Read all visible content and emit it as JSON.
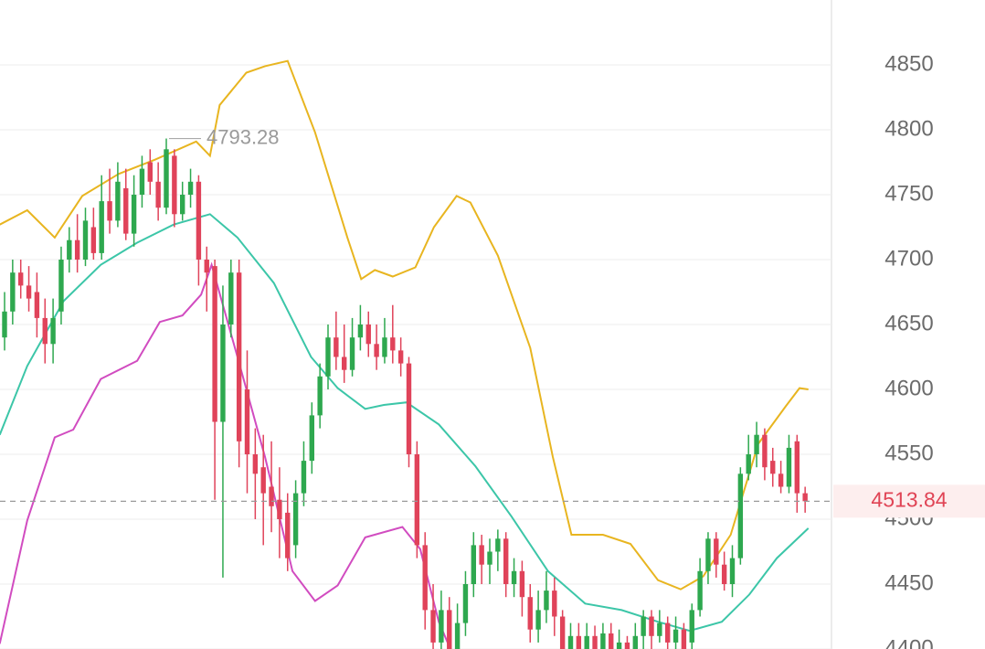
{
  "chart_data": {
    "type": "candlestick",
    "up_color": "#2ea84f",
    "down_color": "#e0435a",
    "ylim": [
      4400,
      4900
    ],
    "yticks": [
      4400,
      4450,
      4500,
      4550,
      4600,
      4650,
      4700,
      4750,
      4800,
      4850
    ],
    "grid": true,
    "candles": {
      "open": [
        4640,
        4660,
        4690,
        4680,
        4675,
        4655,
        4635,
        4660,
        4700,
        4715,
        4700,
        4725,
        4705,
        4745,
        4730,
        4755,
        4720,
        4750,
        4775,
        4760,
        4740,
        4780,
        4735,
        4750,
        4760,
        4700,
        4695,
        4575,
        4650,
        4690,
        4600,
        4550,
        4540,
        4525,
        4515,
        4505,
        4480,
        4520,
        4545,
        4580,
        4610,
        4640,
        4625,
        4615,
        4640,
        4650,
        4635,
        4625,
        4640,
        4630,
        4620,
        4550,
        4480,
        4430,
        4405,
        4430,
        4400,
        4420,
        4450,
        4480,
        4465,
        4475,
        4485,
        4450,
        4460,
        4440,
        4415,
        4430,
        4445,
        4425,
        4400,
        4410,
        4395,
        4410,
        4400,
        4412,
        4400,
        4405,
        4395,
        4410,
        4425,
        4410,
        4420,
        4405,
        4415,
        4405,
        4430,
        4460,
        4485,
        4465,
        4450,
        4470,
        4535,
        4550,
        4565,
        4545,
        4535,
        4525,
        4560,
        4520
      ],
      "high": [
        4675,
        4700,
        4700,
        4695,
        4690,
        4670,
        4670,
        4710,
        4725,
        4735,
        4740,
        4740,
        4765,
        4770,
        4775,
        4770,
        4765,
        4780,
        4785,
        4775,
        4793.28,
        4785,
        4760,
        4770,
        4765,
        4710,
        4700,
        4680,
        4700,
        4700,
        4630,
        4570,
        4565,
        4560,
        4540,
        4520,
        4530,
        4560,
        4590,
        4620,
        4650,
        4660,
        4650,
        4655,
        4665,
        4660,
        4650,
        4655,
        4665,
        4640,
        4625,
        4560,
        4490,
        4450,
        4445,
        4440,
        4435,
        4460,
        4490,
        4488,
        4485,
        4492,
        4490,
        4470,
        4468,
        4450,
        4445,
        4460,
        4455,
        4430,
        4420,
        4420,
        4420,
        4418,
        4420,
        4420,
        4415,
        4410,
        4420,
        4430,
        4430,
        4430,
        4425,
        4425,
        4420,
        4435,
        4470,
        4490,
        4490,
        4475,
        4480,
        4540,
        4565,
        4575,
        4570,
        4555,
        4545,
        4565,
        4565,
        4525
      ],
      "low": [
        4630,
        4650,
        4670,
        4660,
        4640,
        4620,
        4620,
        4650,
        4690,
        4690,
        4695,
        4700,
        4700,
        4720,
        4725,
        4715,
        4710,
        4740,
        4750,
        4730,
        4735,
        4725,
        4730,
        4740,
        4680,
        4660,
        4515,
        4455,
        4640,
        4540,
        4520,
        4500,
        4480,
        4490,
        4470,
        4460,
        4470,
        4510,
        4535,
        4570,
        4600,
        4615,
        4605,
        4610,
        4630,
        4625,
        4615,
        4620,
        4620,
        4610,
        4540,
        4470,
        4415,
        4390,
        4395,
        4385,
        4390,
        4410,
        4440,
        4450,
        4450,
        4460,
        4440,
        4440,
        4425,
        4405,
        4405,
        4420,
        4410,
        4385,
        4390,
        4385,
        4385,
        4390,
        4392,
        4390,
        4390,
        4385,
        4390,
        4400,
        4400,
        4405,
        4398,
        4400,
        4390,
        4400,
        4425,
        4450,
        4455,
        4445,
        4440,
        4465,
        4530,
        4540,
        4530,
        4525,
        4520,
        4520,
        4505,
        4505
      ],
      "close": [
        4660,
        4690,
        4680,
        4670,
        4655,
        4635,
        4655,
        4700,
        4715,
        4700,
        4730,
        4705,
        4745,
        4730,
        4760,
        4720,
        4750,
        4770,
        4760,
        4740,
        4785,
        4735,
        4750,
        4760,
        4700,
        4690,
        4575,
        4650,
        4690,
        4560,
        4550,
        4535,
        4520,
        4510,
        4500,
        4470,
        4520,
        4545,
        4580,
        4610,
        4640,
        4625,
        4615,
        4640,
        4650,
        4635,
        4625,
        4640,
        4630,
        4620,
        4550,
        4480,
        4430,
        4405,
        4430,
        4400,
        4420,
        4450,
        4480,
        4465,
        4475,
        4485,
        4450,
        4460,
        4440,
        4415,
        4430,
        4445,
        4425,
        4400,
        4410,
        4395,
        4410,
        4400,
        4412,
        4400,
        4405,
        4395,
        4410,
        4425,
        4410,
        4420,
        4405,
        4415,
        4400,
        4430,
        4460,
        4485,
        4465,
        4450,
        4470,
        4535,
        4550,
        4565,
        4540,
        4535,
        4525,
        4555,
        4520,
        4513.84
      ]
    },
    "series": [
      {
        "color": "#e8b520",
        "x": [
          -0.6,
          2.8,
          6.2,
          9.6,
          14.1,
          18.6,
          23.7,
          25.4,
          26.6,
          29.9,
          32.2,
          35.0,
          38.4,
          42.4,
          44.1,
          45.8,
          48.0,
          50.8,
          53.1,
          55.9,
          57.6,
          61.0,
          65.0,
          67.8,
          70.1,
          74.0,
          77.4,
          80.8,
          83.6,
          86.4,
          89.8,
          93.2,
          96.6,
          98.3,
          99.4
        ],
        "values": [
          4727,
          4738,
          4717,
          4749,
          4766,
          4777,
          4791,
          4780,
          4819,
          4844,
          4849,
          4853,
          4798,
          4717,
          4685,
          4692,
          4687,
          4694,
          4725,
          4749,
          4744,
          4703,
          4632,
          4548,
          4488,
          4488,
          4481,
          4453,
          4446,
          4456,
          4488,
          4558,
          4587,
          4601,
          4600
        ]
      },
      {
        "color": "#3cc6a8",
        "x": [
          -0.6,
          2.8,
          7.3,
          11.9,
          16.4,
          20.9,
          25.4,
          28.8,
          33.3,
          37.9,
          41.2,
          44.6,
          46.9,
          49.7,
          53.7,
          58.2,
          62.7,
          67.2,
          71.8,
          76.3,
          80.8,
          84.7,
          88.7,
          92.1,
          95.5,
          99.4
        ],
        "values": [
          4565,
          4618,
          4668,
          4696,
          4713,
          4727,
          4735,
          4717,
          4682,
          4625,
          4601,
          4585,
          4588,
          4590,
          4573,
          4541,
          4502,
          4460,
          4435,
          4430,
          4421,
          4414,
          4421,
          4442,
          4470,
          4493
        ]
      },
      {
        "color": "#d14cc0",
        "x": [
          -0.6,
          2.8,
          6.2,
          8.5,
          11.9,
          16.4,
          19.2,
          22.0,
          24.3,
          25.6,
          28.8,
          32.2,
          35.6,
          38.4,
          41.2,
          44.6,
          49.2,
          51.4,
          53.7,
          55.4
        ],
        "values": [
          4404,
          4499,
          4563,
          4569,
          4608,
          4622,
          4652,
          4657,
          4673,
          4696,
          4625,
          4548,
          4460,
          4437,
          4449,
          4486,
          4494,
          4477,
          4421,
          4396
        ]
      }
    ]
  }
}
